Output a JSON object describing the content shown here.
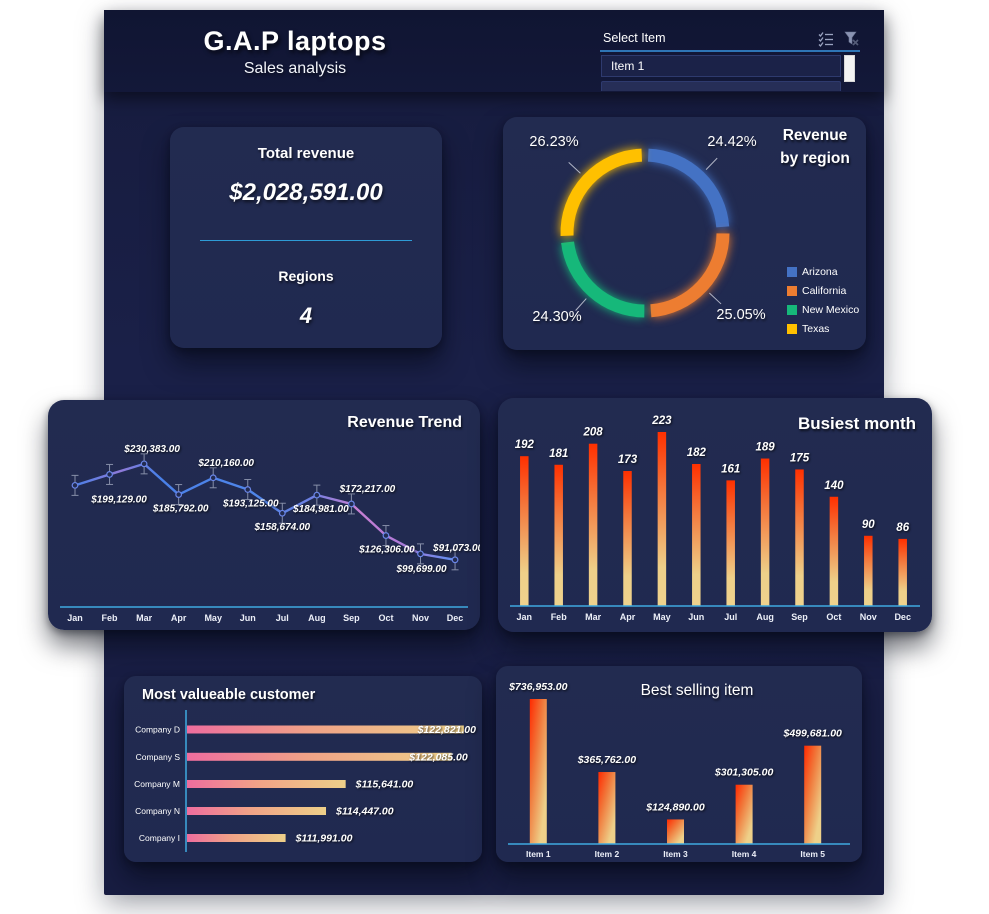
{
  "header": {
    "title": "G.A.P laptops",
    "subtitle": "Sales analysis",
    "slicer": {
      "label": "Select Item",
      "selected_item": "Item 1"
    }
  },
  "kpi": {
    "total_revenue_label": "Total revenue",
    "total_revenue_value": "$2,028,591.00",
    "regions_label": "Regions",
    "regions_value": "4"
  },
  "colors": {
    "axis_accent": "#3FA9E0",
    "slicer_underline": "#2E75B6",
    "kpi_divider": "#2E9BD6",
    "arizona_blue": "#4472C4",
    "california_orange": "#ED7D31",
    "new_mexico_green": "#16B87A",
    "texas_yellow": "#FFC000"
  },
  "chart_data": [
    {
      "id": "revenue_by_region",
      "type": "pie",
      "subtype": "doughnut",
      "title": "Revenue by region",
      "labels": [
        "Arizona",
        "California",
        "New Mexico",
        "Texas"
      ],
      "values": [
        24.42,
        25.05,
        24.3,
        26.23
      ],
      "data_labels": [
        "24.42%",
        "25.05%",
        "24.30%",
        "26.23%"
      ],
      "colors": [
        "#4472C4",
        "#ED7D31",
        "#16B87A",
        "#FFC000"
      ],
      "legend_position": "right"
    },
    {
      "id": "revenue_trend",
      "type": "line",
      "title": "Revenue Trend",
      "categories": [
        "Jan",
        "Feb",
        "Mar",
        "Apr",
        "May",
        "Jun",
        "Jul",
        "Aug",
        "Sep",
        "Oct",
        "Nov",
        "Dec"
      ],
      "values": [
        199129,
        215000,
        230383,
        185792,
        210160,
        193125,
        158674,
        184981,
        172217,
        126306,
        99699,
        91073
      ],
      "data_labels": [
        "$199,129.00",
        "",
        "$230,383.00",
        "$185,792.00",
        "$210,160.00",
        "$193,125.00",
        "$158,674.00",
        "$184,981.00",
        "$172,217.00",
        "$126,306.00",
        "$99,699.00",
        "$91,073.00"
      ],
      "ylim": [
        40000,
        265000
      ],
      "error_bars": true,
      "grid": false
    },
    {
      "id": "busiest_month",
      "type": "bar",
      "title": "Busiest month",
      "categories": [
        "Jan",
        "Feb",
        "Mar",
        "Apr",
        "May",
        "Jun",
        "Jul",
        "Aug",
        "Sep",
        "Oct",
        "Nov",
        "Dec"
      ],
      "values": [
        192,
        181,
        208,
        173,
        223,
        182,
        161,
        189,
        175,
        140,
        90,
        86
      ],
      "data_labels": [
        "192",
        "181",
        "208",
        "173",
        "223",
        "182",
        "161",
        "189",
        "175",
        "140",
        "90",
        "86"
      ],
      "ylim": [
        0,
        223
      ],
      "grid": false
    },
    {
      "id": "most_valuable_customer",
      "type": "bar",
      "subtype": "horizontal",
      "title": "Most valueable customer",
      "categories": [
        "Company D",
        "Company S",
        "Company M",
        "Company N",
        "Company I"
      ],
      "values": [
        122821,
        122085,
        115641,
        114447,
        111991
      ],
      "data_labels": [
        "$122,821.00",
        "$122,085.00",
        "$115,641.00",
        "$114,447.00",
        "$111,991.00"
      ],
      "xlim": [
        106000,
        123500
      ],
      "grid": false
    },
    {
      "id": "best_selling_item",
      "type": "bar",
      "title": "Best selling item",
      "categories": [
        "Item 1",
        "Item 2",
        "Item 3",
        "Item 4",
        "Item 5"
      ],
      "values": [
        736953,
        365762,
        124890,
        301305,
        499681
      ],
      "data_labels": [
        "$736,953.00",
        "$365,762.00",
        "$124,890.00",
        "$301,305.00",
        "$499,681.00"
      ],
      "ylim": [
        0,
        760000
      ],
      "grid": false
    }
  ]
}
